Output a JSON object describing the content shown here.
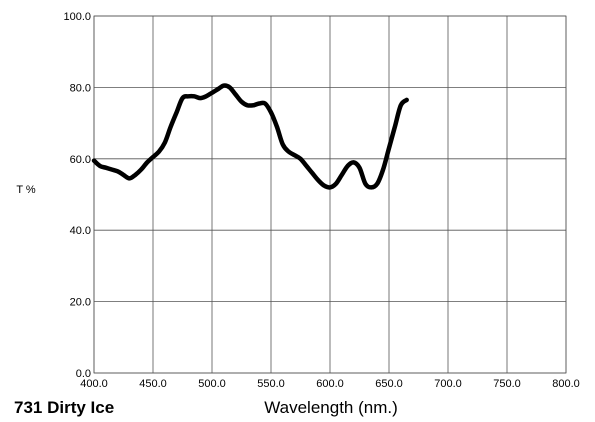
{
  "chart_data": {
    "type": "line",
    "title": "731 Dirty Ice",
    "xlabel": "Wavelength (nm.)",
    "ylabel": "T %",
    "xlim": [
      400,
      800
    ],
    "ylim": [
      0,
      100
    ],
    "x_ticks": [
      "400.0",
      "450.0",
      "500.0",
      "550.0",
      "600.0",
      "650.0",
      "700.0",
      "750.0",
      "800.0"
    ],
    "y_ticks": [
      "0.0",
      "20.0",
      "40.0",
      "60.0",
      "80.0",
      "100.0"
    ],
    "grid": true,
    "series": [
      {
        "color": "#000000",
        "x": [
          400,
          405,
          410,
          415,
          420,
          425,
          430,
          435,
          440,
          445,
          450,
          455,
          460,
          465,
          470,
          475,
          480,
          485,
          490,
          495,
          500,
          505,
          510,
          515,
          520,
          525,
          530,
          535,
          540,
          545,
          550,
          555,
          560,
          565,
          570,
          575,
          580,
          585,
          590,
          595,
          600,
          605,
          610,
          615,
          620,
          625,
          630,
          635,
          640,
          645,
          650,
          655,
          660,
          665,
          670,
          675,
          680,
          685,
          690,
          695,
          700
        ],
        "y": [
          59.5,
          58,
          57.5,
          57,
          56.5,
          55.5,
          54.5,
          55.5,
          57,
          59,
          60.5,
          62,
          64.5,
          69,
          73,
          77,
          77.5,
          77.5,
          77,
          77.5,
          78.5,
          79.5,
          80.5,
          80,
          78,
          76,
          75,
          75,
          75.5,
          75.5,
          73,
          69,
          64,
          62,
          61,
          60,
          58,
          56,
          54,
          52.5,
          52,
          53,
          55.5,
          58,
          59,
          57.5,
          53,
          52,
          53,
          57,
          63,
          69,
          75,
          76.5,
          null,
          null,
          null,
          null,
          null,
          null,
          null
        ]
      }
    ]
  }
}
